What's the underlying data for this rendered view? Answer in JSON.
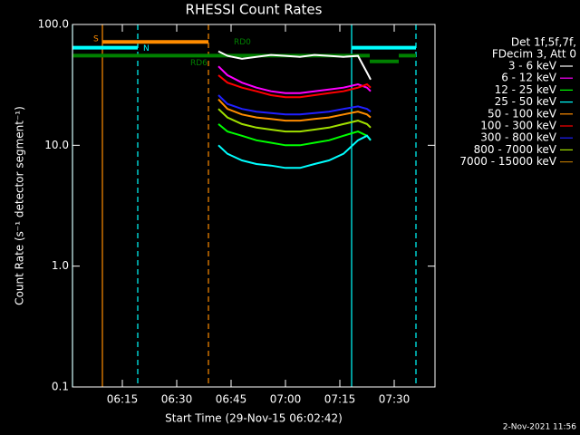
{
  "chart_data": {
    "type": "line",
    "title": "RHESSI Count Rates",
    "xlabel": "Start Time (29-Nov-15 06:02:42)",
    "ylabel": "Count Rate (s⁻¹ detector segment⁻¹)",
    "legend_header": [
      "Det 1f,5f,7f,",
      "FDecim 3, Att 0"
    ],
    "footer": "2-Nov-2021 11:56",
    "log_y": true,
    "xlim": [
      361.25,
      461.25
    ],
    "xticks": [
      {
        "value": 375,
        "label": "06:15"
      },
      {
        "value": 390,
        "label": "06:30"
      },
      {
        "value": 405,
        "label": "06:45"
      },
      {
        "value": 420,
        "label": "07:00"
      },
      {
        "value": 435,
        "label": "07:15"
      },
      {
        "value": 450,
        "label": "07:30"
      }
    ],
    "ylim": [
      0.1,
      100
    ],
    "yticks": [
      0.1,
      {
        "value": 1,
        "label": "1.0"
      },
      {
        "value": 10,
        "label": "10.0"
      },
      {
        "value": 100,
        "label": "100.0"
      }
    ],
    "x": [
      401.5,
      404,
      408,
      412,
      416,
      420,
      424,
      428,
      432,
      436,
      440,
      442.5,
      443.5
    ],
    "series": [
      {
        "name": "3 - 6 keV",
        "color": "#ffffff",
        "values": [
          60,
          55,
          52,
          54,
          56,
          55,
          54,
          56,
          55,
          54,
          55,
          40,
          35
        ]
      },
      {
        "name": "6 - 12 keV",
        "color": "#ff00ff",
        "values": [
          45,
          38,
          33,
          30,
          28,
          27,
          27,
          28,
          29,
          30,
          32,
          30,
          28
        ]
      },
      {
        "name": "12 - 25 keV",
        "color": "#00ff00",
        "values": [
          15,
          13,
          12,
          11,
          10.5,
          10,
          10,
          10.5,
          11,
          12,
          13,
          12,
          11
        ]
      },
      {
        "name": "25 - 50 keV",
        "color": "#00ffff",
        "values": [
          10,
          8.5,
          7.5,
          7,
          6.8,
          6.5,
          6.5,
          7,
          7.5,
          8.5,
          11,
          12,
          11
        ]
      },
      {
        "name": "50 - 100 keV",
        "color": "#ff8c00",
        "values": [
          24,
          20,
          18,
          17,
          16.5,
          16,
          16,
          16.5,
          17,
          18,
          19,
          18,
          17
        ]
      },
      {
        "name": "100 - 300 keV",
        "color": "#ff0000",
        "values": [
          38,
          33,
          30,
          28,
          26,
          25,
          25,
          26,
          27,
          28,
          30,
          32,
          30
        ]
      },
      {
        "name": "300 - 800 keV",
        "color": "#2020ff",
        "values": [
          26,
          22,
          20,
          19,
          18.5,
          18,
          18,
          18.5,
          19,
          20,
          21,
          20,
          19
        ]
      },
      {
        "name": "800 - 7000 keV",
        "color": "#a0e000",
        "values": [
          20,
          17,
          15,
          14,
          13.5,
          13,
          13,
          13.5,
          14,
          15,
          16,
          15,
          14
        ]
      },
      {
        "name": "7000 - 15000 keV",
        "color": "#b07000",
        "values": [
          null,
          null,
          null,
          null,
          null,
          null,
          null,
          null,
          null,
          null,
          null,
          null,
          null
        ]
      }
    ],
    "vlines": [
      {
        "x": 369.5,
        "color": "#ff8c00",
        "dashed": false
      },
      {
        "x": 398.75,
        "color": "#ff8c00",
        "dashed": true
      },
      {
        "x": 361.25,
        "color": "#00ffff",
        "dashed": false
      },
      {
        "x": 438.25,
        "color": "#00ffff",
        "dashed": false
      },
      {
        "x": 379.25,
        "color": "#00ffff",
        "dashed": true
      },
      {
        "x": 456,
        "color": "#00ffff",
        "dashed": true
      }
    ],
    "bars": [
      {
        "label": "S",
        "from": 369.5,
        "to": 398.75,
        "y": 76,
        "color": "#ff8c00"
      },
      {
        "label": "N",
        "from": 361.25,
        "to": 379.25,
        "y": 68,
        "color": "#00ffff"
      },
      {
        "label": null,
        "from": 438.25,
        "to": 456,
        "y": 68,
        "color": "#00ffff"
      },
      {
        "label": "RD6",
        "from": 361.25,
        "to": 443.25,
        "y": 57,
        "color": "#008000"
      },
      {
        "label": null,
        "from": 443.25,
        "to": 451.25,
        "y": 49,
        "color": "#008000"
      },
      {
        "label": null,
        "from": 451.25,
        "to": 456,
        "y": 57,
        "color": "#008000"
      }
    ],
    "annotations": [
      {
        "text": "RD0",
        "x": 407,
        "y": 59,
        "color": "#008000"
      }
    ]
  }
}
